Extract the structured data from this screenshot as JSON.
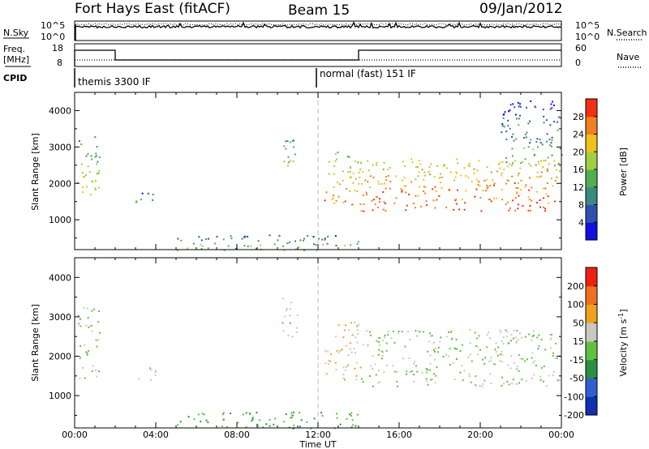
{
  "header": {
    "station": "Fort Hays East (fitACF)",
    "beam": "Beam 15",
    "date": "09/Jan/2012"
  },
  "panels": {
    "nsky_label": "N.Sky",
    "nsearch_label": "N.Search",
    "freq_label_1": "Freq.",
    "freq_label_2": "[MHz]",
    "nave_label": "Nave",
    "cpid_label": "CPID",
    "noise_left_ticks": [
      "10^5",
      "10^0"
    ],
    "noise_right_ticks": [
      "10^5",
      "10^0"
    ],
    "freq_left_ticks": [
      "18",
      "8"
    ],
    "freq_right_ticks": [
      "60",
      "0"
    ],
    "cpid_modes": [
      {
        "label": "themis 3300 IF",
        "start_hour": 0
      },
      {
        "label": "normal (fast) 151 IF",
        "start_hour": 12
      }
    ]
  },
  "chart_data": [
    {
      "type": "heatmap",
      "panel": "power",
      "ylabel": "Slant Range [km]",
      "xlabel": "Time UT",
      "x_ticks": [
        "00:00",
        "04:00",
        "08:00",
        "12:00",
        "16:00",
        "20:00",
        "00:00"
      ],
      "x_range_hours": [
        0,
        24
      ],
      "y_ticks": [
        1000,
        2000,
        3000,
        4000
      ],
      "y_range_km": [
        180,
        4500
      ],
      "colorbar": {
        "label": "Power [dB]",
        "ticks": [
          4,
          8,
          12,
          16,
          20,
          24,
          28
        ],
        "range": [
          0,
          30
        ],
        "colors": [
          "#1010e0",
          "#3050b0",
          "#3a8a80",
          "#50b050",
          "#a0d040",
          "#f0c020",
          "#f08020",
          "#f03010"
        ]
      },
      "regions": [
        {
          "t0": 0.1,
          "t1": 1.2,
          "r0": 1550,
          "r1": 3300,
          "power": 14
        },
        {
          "t0": 3.0,
          "t1": 4.0,
          "r0": 1400,
          "r1": 1800,
          "power": 8
        },
        {
          "t0": 10.2,
          "t1": 11.0,
          "r0": 2500,
          "r1": 3500,
          "power": 10
        },
        {
          "t0": 12.3,
          "t1": 14.1,
          "r0": 1400,
          "r1": 2900,
          "power": 18
        },
        {
          "t0": 14.1,
          "t1": 23.9,
          "r0": 1250,
          "r1": 2700,
          "power": 22
        },
        {
          "t0": 21.0,
          "t1": 24.0,
          "r0": 2500,
          "r1": 4300,
          "power": 8
        },
        {
          "t0": 5.0,
          "t1": 14.0,
          "r0": 180,
          "r1": 600,
          "power": 10
        }
      ]
    },
    {
      "type": "heatmap",
      "panel": "velocity",
      "ylabel": "Slant Range [km]",
      "xlabel": "Time UT",
      "x_ticks": [
        "00:00",
        "04:00",
        "08:00",
        "12:00",
        "16:00",
        "20:00",
        "00:00"
      ],
      "x_range_hours": [
        0,
        24
      ],
      "y_ticks": [
        1000,
        2000,
        3000,
        4000
      ],
      "y_range_km": [
        180,
        4500
      ],
      "colorbar": {
        "label": "Velocity [m s^-1]",
        "ticks": [
          200,
          100,
          50,
          15,
          -15,
          -50,
          -100,
          -200
        ],
        "range": [
          -250,
          250
        ],
        "colors": [
          "#1030b0",
          "#3060d0",
          "#2a9040",
          "#60c040",
          "#c8c8c0",
          "#f0a020",
          "#f07020",
          "#f02010"
        ]
      },
      "regions": [
        {
          "t0": 0.1,
          "t1": 1.2,
          "r0": 1450,
          "r1": 3300,
          "velocity": 0
        },
        {
          "t0": 3.0,
          "t1": 4.0,
          "r0": 1400,
          "r1": 1800,
          "velocity": 60
        },
        {
          "t0": 10.2,
          "t1": 11.0,
          "r0": 2500,
          "r1": 3500,
          "velocity": 10
        },
        {
          "t0": 12.3,
          "t1": 14.1,
          "r0": 1400,
          "r1": 2900,
          "velocity": 60
        },
        {
          "t0": 14.1,
          "t1": 23.9,
          "r0": 1250,
          "r1": 2700,
          "velocity": 0
        },
        {
          "t0": 5.0,
          "t1": 14.0,
          "r0": 180,
          "r1": 600,
          "velocity": -60
        }
      ]
    }
  ]
}
